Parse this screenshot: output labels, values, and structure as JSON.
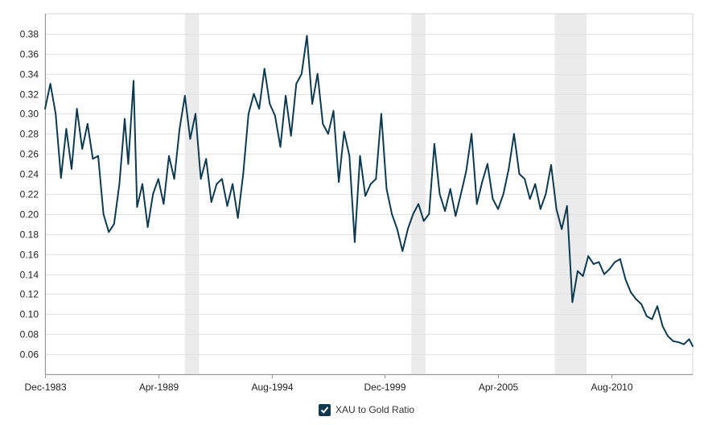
{
  "chart_data": {
    "type": "line",
    "title": "",
    "xlabel": "",
    "ylabel": "",
    "ylim": [
      0.04,
      0.4
    ],
    "xlim": [
      "1983-12",
      "2014-06"
    ],
    "grid": true,
    "legend_position": "bottom-center",
    "y_ticks": [
      "0.06",
      "0.08",
      "0.10",
      "0.12",
      "0.14",
      "0.16",
      "0.18",
      "0.20",
      "0.22",
      "0.24",
      "0.26",
      "0.28",
      "0.30",
      "0.32",
      "0.34",
      "0.36",
      "0.38"
    ],
    "x_ticks": [
      {
        "label": "Dec-1983",
        "date": "1983-12"
      },
      {
        "label": "Apr-1989",
        "date": "1989-04"
      },
      {
        "label": "Aug-1994",
        "date": "1994-08"
      },
      {
        "label": "Dec-1999",
        "date": "1999-12"
      },
      {
        "label": "Apr-2005",
        "date": "2005-04"
      },
      {
        "label": "Aug-2010",
        "date": "2010-08"
      }
    ],
    "recession_bands": [
      {
        "start": "1990-07",
        "end": "1991-03"
      },
      {
        "start": "2001-03",
        "end": "2001-11"
      },
      {
        "start": "2007-12",
        "end": "2009-06"
      }
    ],
    "series": [
      {
        "name": "XAU to Gold Ratio",
        "color": "#0e3a4f",
        "points": [
          [
            "1983-12",
            0.305
          ],
          [
            "1984-03",
            0.33
          ],
          [
            "1984-06",
            0.3
          ],
          [
            "1984-09",
            0.236
          ],
          [
            "1984-12",
            0.285
          ],
          [
            "1985-03",
            0.245
          ],
          [
            "1985-06",
            0.305
          ],
          [
            "1985-09",
            0.265
          ],
          [
            "1985-12",
            0.29
          ],
          [
            "1986-03",
            0.255
          ],
          [
            "1986-06",
            0.258
          ],
          [
            "1986-09",
            0.2
          ],
          [
            "1986-12",
            0.182
          ],
          [
            "1987-03",
            0.19
          ],
          [
            "1987-06",
            0.23
          ],
          [
            "1987-09",
            0.295
          ],
          [
            "1987-11",
            0.25
          ],
          [
            "1988-02",
            0.333
          ],
          [
            "1988-04",
            0.207
          ],
          [
            "1988-07",
            0.23
          ],
          [
            "1988-10",
            0.187
          ],
          [
            "1989-01",
            0.22
          ],
          [
            "1989-04",
            0.235
          ],
          [
            "1989-07",
            0.21
          ],
          [
            "1989-10",
            0.258
          ],
          [
            "1990-01",
            0.235
          ],
          [
            "1990-04",
            0.285
          ],
          [
            "1990-07",
            0.318
          ],
          [
            "1990-10",
            0.275
          ],
          [
            "1991-01",
            0.3
          ],
          [
            "1991-04",
            0.235
          ],
          [
            "1991-07",
            0.255
          ],
          [
            "1991-10",
            0.212
          ],
          [
            "1992-01",
            0.23
          ],
          [
            "1992-04",
            0.235
          ],
          [
            "1992-07",
            0.208
          ],
          [
            "1992-10",
            0.23
          ],
          [
            "1993-01",
            0.196
          ],
          [
            "1993-04",
            0.24
          ],
          [
            "1993-07",
            0.3
          ],
          [
            "1993-10",
            0.32
          ],
          [
            "1994-01",
            0.305
          ],
          [
            "1994-04",
            0.345
          ],
          [
            "1994-07",
            0.31
          ],
          [
            "1994-10",
            0.298
          ],
          [
            "1995-01",
            0.267
          ],
          [
            "1995-04",
            0.318
          ],
          [
            "1995-07",
            0.278
          ],
          [
            "1995-10",
            0.33
          ],
          [
            "1996-01",
            0.34
          ],
          [
            "1996-04",
            0.378
          ],
          [
            "1996-07",
            0.31
          ],
          [
            "1996-10",
            0.34
          ],
          [
            "1997-01",
            0.29
          ],
          [
            "1997-04",
            0.28
          ],
          [
            "1997-07",
            0.303
          ],
          [
            "1997-10",
            0.232
          ],
          [
            "1998-01",
            0.282
          ],
          [
            "1998-04",
            0.258
          ],
          [
            "1998-07",
            0.172
          ],
          [
            "1998-10",
            0.258
          ],
          [
            "1999-01",
            0.218
          ],
          [
            "1999-04",
            0.23
          ],
          [
            "1999-07",
            0.235
          ],
          [
            "1999-10",
            0.3
          ],
          [
            "2000-01",
            0.225
          ],
          [
            "2000-04",
            0.2
          ],
          [
            "2000-07",
            0.185
          ],
          [
            "2000-10",
            0.163
          ],
          [
            "2001-01",
            0.185
          ],
          [
            "2001-04",
            0.2
          ],
          [
            "2001-07",
            0.21
          ],
          [
            "2001-10",
            0.193
          ],
          [
            "2002-01",
            0.2
          ],
          [
            "2002-04",
            0.27
          ],
          [
            "2002-07",
            0.22
          ],
          [
            "2002-10",
            0.203
          ],
          [
            "2003-01",
            0.225
          ],
          [
            "2003-04",
            0.198
          ],
          [
            "2003-07",
            0.22
          ],
          [
            "2003-10",
            0.243
          ],
          [
            "2004-01",
            0.28
          ],
          [
            "2004-04",
            0.21
          ],
          [
            "2004-07",
            0.232
          ],
          [
            "2004-10",
            0.25
          ],
          [
            "2005-01",
            0.215
          ],
          [
            "2005-04",
            0.205
          ],
          [
            "2005-07",
            0.22
          ],
          [
            "2005-10",
            0.245
          ],
          [
            "2006-01",
            0.28
          ],
          [
            "2006-04",
            0.24
          ],
          [
            "2006-07",
            0.235
          ],
          [
            "2006-10",
            0.215
          ],
          [
            "2007-01",
            0.23
          ],
          [
            "2007-04",
            0.205
          ],
          [
            "2007-07",
            0.22
          ],
          [
            "2007-10",
            0.249
          ],
          [
            "2008-01",
            0.205
          ],
          [
            "2008-04",
            0.185
          ],
          [
            "2008-07",
            0.208
          ],
          [
            "2008-10",
            0.112
          ],
          [
            "2009-01",
            0.143
          ],
          [
            "2009-04",
            0.138
          ],
          [
            "2009-07",
            0.158
          ],
          [
            "2009-10",
            0.15
          ],
          [
            "2010-01",
            0.152
          ],
          [
            "2010-04",
            0.14
          ],
          [
            "2010-07",
            0.145
          ],
          [
            "2010-10",
            0.152
          ],
          [
            "2011-01",
            0.155
          ],
          [
            "2011-04",
            0.135
          ],
          [
            "2011-07",
            0.122
          ],
          [
            "2011-10",
            0.115
          ],
          [
            "2012-01",
            0.11
          ],
          [
            "2012-04",
            0.098
          ],
          [
            "2012-07",
            0.095
          ],
          [
            "2012-10",
            0.108
          ],
          [
            "2013-01",
            0.088
          ],
          [
            "2013-04",
            0.078
          ],
          [
            "2013-07",
            0.073
          ],
          [
            "2013-10",
            0.072
          ],
          [
            "2014-01",
            0.07
          ],
          [
            "2014-04",
            0.075
          ],
          [
            "2014-06",
            0.068
          ]
        ]
      }
    ]
  },
  "legend": {
    "label": "XAU to Gold Ratio",
    "checked": true
  }
}
